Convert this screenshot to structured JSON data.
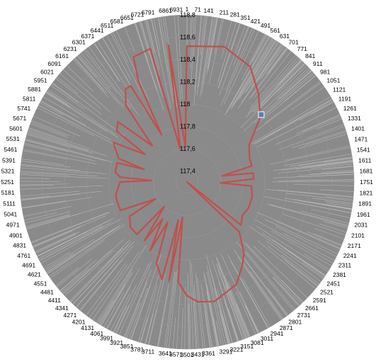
{
  "chart_data": {
    "type": "radar",
    "title": "",
    "radial_axis": {
      "min": 117.3,
      "max": 118.8,
      "tick_labels": [
        "117,4",
        "117,6",
        "117,8",
        "118",
        "118,2",
        "118,4",
        "118,6",
        "118,8"
      ],
      "tick_values": [
        117.4,
        117.6,
        117.8,
        118.0,
        118.2,
        118.4,
        118.6,
        118.8
      ]
    },
    "categories_count": 6999,
    "category_labels": [
      "1",
      "71",
      "141",
      "211",
      "281",
      "351",
      "421",
      "491",
      "561",
      "631",
      "701",
      "771",
      "841",
      "911",
      "981",
      "1051",
      "1121",
      "1191",
      "1261",
      "1331",
      "1401",
      "1471",
      "1541",
      "1611",
      "1681",
      "1751",
      "1821",
      "1891",
      "1961",
      "2031",
      "2101",
      "2171",
      "2241",
      "2311",
      "2381",
      "2451",
      "2521",
      "2591",
      "2661",
      "2731",
      "2801",
      "2871",
      "2941",
      "3011",
      "3081",
      "3151",
      "3221",
      "3291",
      "3361",
      "3431",
      "3501",
      "3571",
      "3641",
      "3711",
      "3781",
      "3851",
      "3921",
      "3991",
      "4061",
      "4131",
      "4201",
      "4271",
      "4341",
      "4411",
      "4481",
      "4551",
      "4621",
      "4691",
      "4761",
      "4831",
      "4901",
      "4971",
      "5041",
      "5111",
      "5181",
      "5251",
      "5321",
      "5391",
      "5461",
      "5531",
      "5601",
      "5671",
      "5741",
      "5811",
      "5881",
      "5951",
      "6021",
      "6091",
      "6161",
      "6231",
      "6301",
      "6371",
      "6441",
      "6511",
      "6581",
      "6651",
      "6721",
      "6791",
      "6861",
      "6931"
    ],
    "series": [
      {
        "color": "#c0504d",
        "points": [
          [
            1,
            118.52
          ],
          [
            300,
            118.56
          ],
          [
            560,
            118.48
          ],
          [
            760,
            118.32
          ],
          [
            880,
            118.22
          ],
          [
            930,
            118.2
          ],
          [
            1000,
            118.1
          ],
          [
            1150,
            117.95
          ],
          [
            1350,
            117.9
          ],
          [
            1480,
            117.9
          ],
          [
            1560,
            117.62
          ],
          [
            1600,
            117.9
          ],
          [
            1700,
            117.9
          ],
          [
            1780,
            117.6
          ],
          [
            1820,
            117.88
          ],
          [
            2000,
            117.9
          ],
          [
            2200,
            117.9
          ],
          [
            2350,
            117.88
          ],
          [
            2500,
            117.92
          ],
          [
            2560,
            117.3
          ],
          [
            2600,
            117.95
          ],
          [
            2750,
            118.12
          ],
          [
            2850,
            118.2
          ],
          [
            3000,
            118.32
          ],
          [
            3250,
            118.4
          ],
          [
            3400,
            118.38
          ],
          [
            3500,
            118.32
          ],
          [
            3600,
            118.2
          ],
          [
            3640,
            117.62
          ],
          [
            3700,
            118.2
          ],
          [
            3750,
            117.65
          ],
          [
            3780,
            118.2
          ],
          [
            3900,
            118.08
          ],
          [
            4000,
            117.7
          ],
          [
            4050,
            118.0
          ],
          [
            4150,
            117.7
          ],
          [
            4200,
            117.95
          ],
          [
            4330,
            117.6
          ],
          [
            4350,
            117.95
          ],
          [
            4500,
            117.95
          ],
          [
            4650,
            117.9
          ],
          [
            4700,
            117.62
          ],
          [
            4800,
            117.95
          ],
          [
            4950,
            117.95
          ],
          [
            5050,
            117.95
          ],
          [
            5250,
            117.9
          ],
          [
            5300,
            117.62
          ],
          [
            5330,
            117.9
          ],
          [
            5400,
            117.95
          ],
          [
            5550,
            117.95
          ],
          [
            5570,
            117.7
          ],
          [
            5620,
            117.95
          ],
          [
            5800,
            118.05
          ],
          [
            5900,
            117.75
          ],
          [
            5950,
            118.08
          ],
          [
            6050,
            118.12
          ],
          [
            6150,
            117.75
          ],
          [
            6250,
            118.18
          ],
          [
            6350,
            118.3
          ],
          [
            6410,
            118.3
          ],
          [
            6450,
            117.78
          ],
          [
            6500,
            118.3
          ],
          [
            6550,
            118.52
          ],
          [
            6700,
            118.54
          ],
          [
            6780,
            117.6
          ],
          [
            6850,
            118.54
          ],
          [
            6950,
            117.62
          ],
          [
            6999,
            118.52
          ]
        ]
      }
    ],
    "grid": true,
    "legend": "none"
  }
}
